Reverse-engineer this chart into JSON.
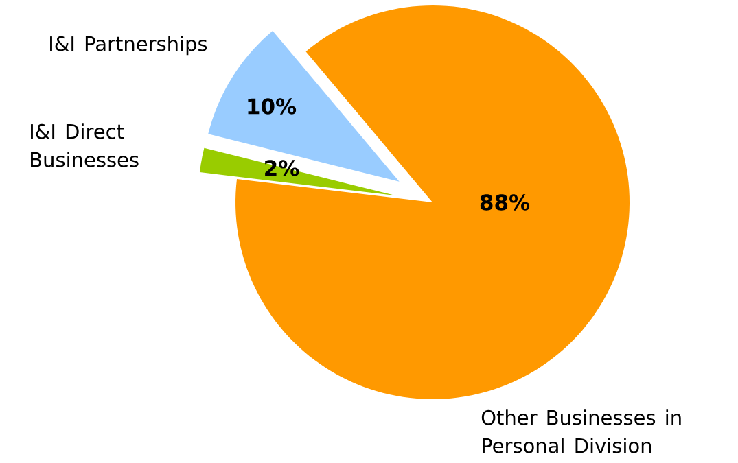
{
  "chart_data": {
    "type": "pie",
    "categories": [
      "I&I Partnerships",
      "I&I Direct Businesses",
      "Other Businesses in Personal Division"
    ],
    "values": [
      10,
      2,
      88
    ],
    "colors": [
      "#99ccff",
      "#99cc00",
      "#ff9900"
    ],
    "value_labels": [
      "10%",
      "2%",
      "88%"
    ]
  }
}
